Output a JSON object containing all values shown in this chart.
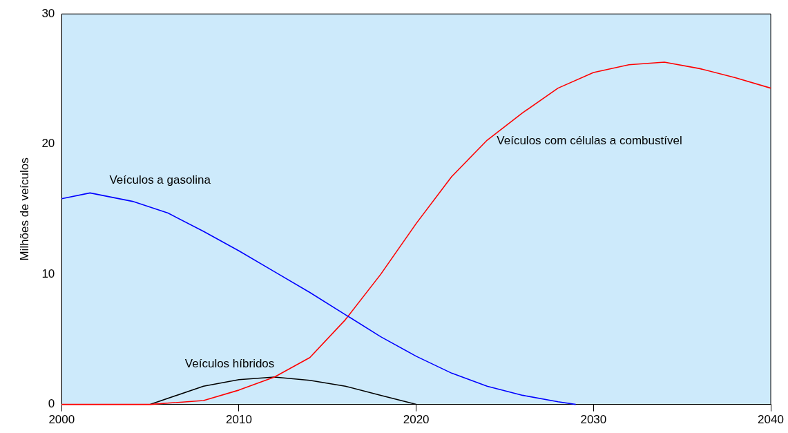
{
  "chart_data": {
    "type": "line",
    "ylabel": "Milhões de veículos",
    "xlim": [
      2000,
      2040
    ],
    "xticks": [
      2000,
      2010,
      2020,
      2030,
      2040
    ],
    "ylim": [
      0,
      30
    ],
    "yticks": [
      0,
      10,
      20,
      30
    ],
    "grid": false,
    "legend": false,
    "marker": "none",
    "line_style": "solid",
    "series": [
      {
        "name": "Veículos a gasolina",
        "color": "#0000ff",
        "x": [
          2000,
          2001.6,
          2004,
          2006,
          2008,
          2010,
          2012,
          2014,
          2016,
          2018,
          2020,
          2022,
          2024,
          2026,
          2028,
          2029
        ],
        "values": [
          15.8,
          16.25,
          15.6,
          14.7,
          13.3,
          11.8,
          10.2,
          8.6,
          6.9,
          5.2,
          3.7,
          2.4,
          1.4,
          0.7,
          0.2,
          0
        ]
      },
      {
        "name": "Veículos com células a combustível",
        "color": "#ff0000",
        "x": [
          2000,
          2005,
          2008,
          2010,
          2012,
          2014,
          2016,
          2018,
          2020,
          2022,
          2024,
          2026,
          2028,
          2030,
          2032,
          2034,
          2036,
          2038,
          2040
        ],
        "values": [
          0,
          0,
          0.3,
          1.1,
          2.1,
          3.6,
          6.5,
          10,
          13.9,
          17.5,
          20.3,
          22.4,
          24.3,
          25.5,
          26.1,
          26.3,
          25.8,
          25.1,
          24.3
        ]
      },
      {
        "name": "Veículos híbridos",
        "color": "#000000",
        "x": [
          2005,
          2008,
          2010,
          2012,
          2014,
          2016,
          2018,
          2020
        ],
        "values": [
          0,
          1.4,
          1.9,
          2.1,
          1.85,
          1.4,
          0.7,
          0
        ]
      }
    ]
  }
}
